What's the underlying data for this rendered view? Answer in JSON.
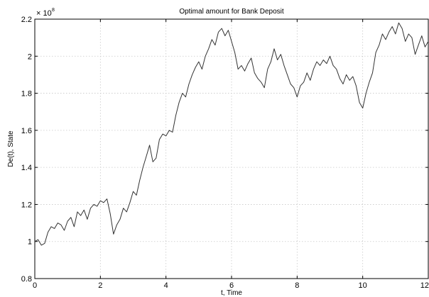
{
  "chart_data": {
    "type": "line",
    "title": "Optimal amount for Bank Deposit",
    "xlabel": "t, Time",
    "ylabel": "De(t), State",
    "scale_exponent_label": "× 10",
    "scale_exponent": "8",
    "xlim": [
      0,
      12
    ],
    "ylim": [
      0.8,
      2.2
    ],
    "x_ticks": [
      "0",
      "2",
      "4",
      "6",
      "8",
      "10",
      "12"
    ],
    "y_ticks": [
      "0.8",
      "1",
      "1.2",
      "1.4",
      "1.6",
      "1.8",
      "2",
      "2.2"
    ],
    "grid": true,
    "line_color": "#333333",
    "series": [
      {
        "x": [
          0,
          0.1,
          0.2,
          0.3,
          0.4,
          0.5,
          0.6,
          0.7,
          0.8,
          0.9,
          1.0,
          1.1,
          1.2,
          1.3,
          1.4,
          1.5,
          1.6,
          1.7,
          1.8,
          1.9,
          2.0,
          2.1,
          2.2,
          2.3,
          2.4,
          2.5,
          2.6,
          2.7,
          2.8,
          2.9,
          3.0,
          3.1,
          3.2,
          3.3,
          3.4,
          3.5,
          3.6,
          3.7,
          3.8,
          3.9,
          4.0,
          4.1,
          4.2,
          4.3,
          4.4,
          4.5,
          4.6,
          4.7,
          4.8,
          4.9,
          5.0,
          5.1,
          5.2,
          5.3,
          5.4,
          5.5,
          5.6,
          5.7,
          5.8,
          5.9,
          6.0,
          6.1,
          6.2,
          6.3,
          6.4,
          6.5,
          6.6,
          6.7,
          6.8,
          6.9,
          7.0,
          7.1,
          7.2,
          7.3,
          7.4,
          7.5,
          7.6,
          7.7,
          7.8,
          7.9,
          8.0,
          8.1,
          8.2,
          8.3,
          8.4,
          8.5,
          8.6,
          8.7,
          8.8,
          8.9,
          9.0,
          9.1,
          9.2,
          9.3,
          9.4,
          9.5,
          9.6,
          9.7,
          9.8,
          9.9,
          10.0,
          10.1,
          10.2,
          10.3,
          10.4,
          10.5,
          10.6,
          10.7,
          10.8,
          10.9,
          11.0,
          11.1,
          11.2,
          11.3,
          11.4,
          11.5,
          11.6,
          11.7,
          11.8,
          11.9,
          12.0
        ],
        "y": [
          1.0,
          1.01,
          0.98,
          0.99,
          1.05,
          1.08,
          1.07,
          1.1,
          1.09,
          1.06,
          1.11,
          1.13,
          1.08,
          1.16,
          1.14,
          1.17,
          1.12,
          1.18,
          1.2,
          1.19,
          1.22,
          1.21,
          1.23,
          1.15,
          1.04,
          1.09,
          1.12,
          1.18,
          1.16,
          1.21,
          1.27,
          1.25,
          1.33,
          1.4,
          1.46,
          1.52,
          1.43,
          1.45,
          1.55,
          1.58,
          1.57,
          1.6,
          1.59,
          1.68,
          1.75,
          1.8,
          1.78,
          1.85,
          1.9,
          1.94,
          1.97,
          1.93,
          2.0,
          2.04,
          2.09,
          2.06,
          2.13,
          2.15,
          2.11,
          2.14,
          2.08,
          2.02,
          1.93,
          1.95,
          1.92,
          1.96,
          1.99,
          1.91,
          1.88,
          1.86,
          1.83,
          1.93,
          1.97,
          2.04,
          1.98,
          2.01,
          1.95,
          1.9,
          1.85,
          1.83,
          1.78,
          1.84,
          1.86,
          1.91,
          1.87,
          1.93,
          1.97,
          1.95,
          1.98,
          1.96,
          2.0,
          1.95,
          1.93,
          1.88,
          1.85,
          1.9,
          1.87,
          1.89,
          1.84,
          1.75,
          1.72,
          1.8,
          1.86,
          1.91,
          2.02,
          2.06,
          2.12,
          2.09,
          2.13,
          2.16,
          2.12,
          2.18,
          2.15,
          2.08,
          2.12,
          2.1,
          2.01,
          2.06,
          2.11,
          2.05,
          2.08
        ]
      }
    ]
  }
}
